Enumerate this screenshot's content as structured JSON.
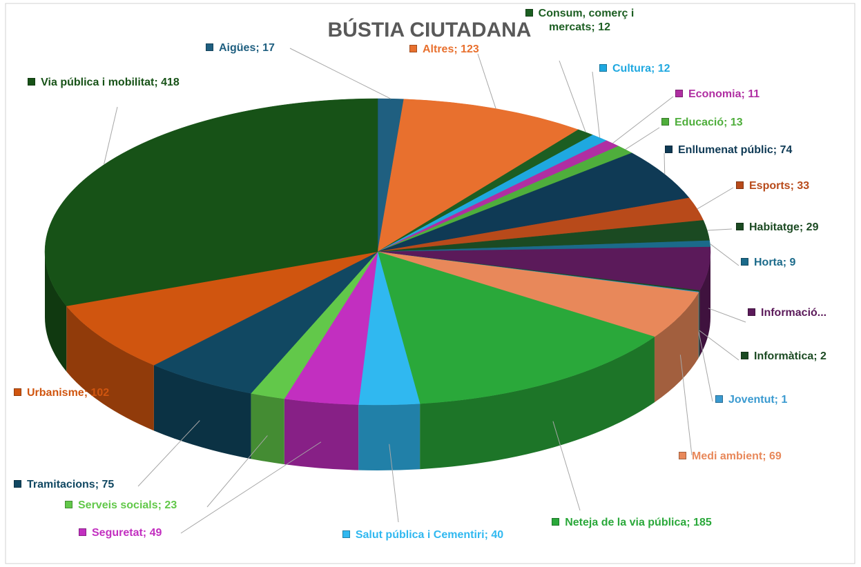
{
  "chart_data": {
    "type": "pie",
    "title": "BÚSTIA CIUTADANA",
    "labels": [
      "Aigües; 17",
      "Altres; 123",
      "Consum, comerç i mercats; 12",
      "Cultura; 12",
      "Economia; 11",
      "Educació; 13",
      "Enllumenat públic; 74",
      "Esports; 33",
      "Habitatge; 29",
      "Horta; 9",
      "Informació...",
      "Informàtica; 2",
      "Joventut; 1",
      "Medi ambient; 69",
      "Neteja de la via pública; 185",
      "Salut pública i Cementiri; 40",
      "Seguretat; 49",
      "Serveis socials; 23",
      "Tramitacions; 75",
      "Urbanisme; 102",
      "Via pública i mobilitat; 418"
    ],
    "values": [
      17,
      123,
      12,
      12,
      11,
      13,
      74,
      33,
      29,
      9,
      62,
      2,
      1,
      69,
      185,
      40,
      49,
      23,
      75,
      102,
      418
    ],
    "colors": [
      "#1f5f80",
      "#e8702e",
      "#1c5e22",
      "#1fa8e0",
      "#b02fa2",
      "#4fae3c",
      "#0f3a55",
      "#b84a1a",
      "#1b4a22",
      "#1b6a8a",
      "#5b1a5a",
      "#1b4a22",
      "#3a9ad0",
      "#e8885a",
      "#2aa83a",
      "#30b8f0",
      "#c22fc0",
      "#62c84a",
      "#114862",
      "#d0550f",
      "#175217"
    ]
  }
}
